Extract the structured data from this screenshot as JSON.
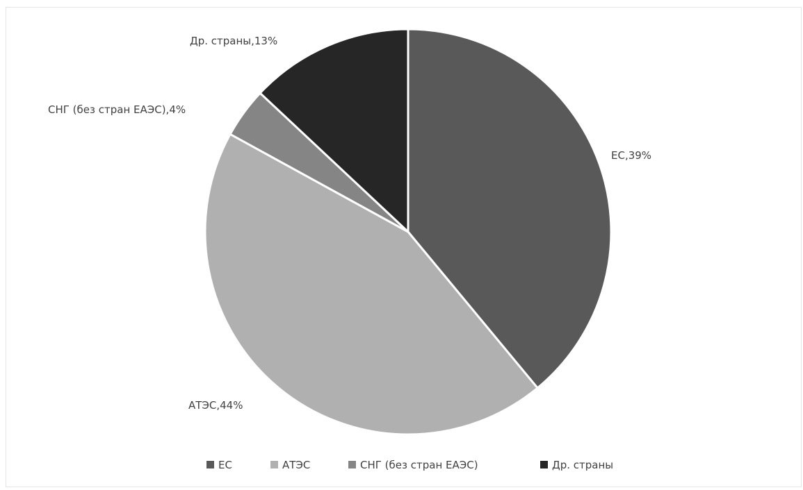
{
  "chart_data": {
    "type": "pie",
    "title": "",
    "legend_position": "bottom",
    "start_angle_deg": 0,
    "direction": "clockwise",
    "slices": [
      {
        "name": "ЕС",
        "value": 39,
        "label": "ЕС,39%",
        "color": "#595959"
      },
      {
        "name": "АТЭС",
        "value": 44,
        "label": "АТЭС,44%",
        "color": "#b0b0b0"
      },
      {
        "name": "СНГ (без стран ЕАЭС)",
        "value": 4,
        "label": "СНГ (без стран ЕАЭС),4%",
        "color": "#858585"
      },
      {
        "name": "Др. страны",
        "value": 13,
        "label": "Др. страны,13%",
        "color": "#262626"
      }
    ]
  }
}
